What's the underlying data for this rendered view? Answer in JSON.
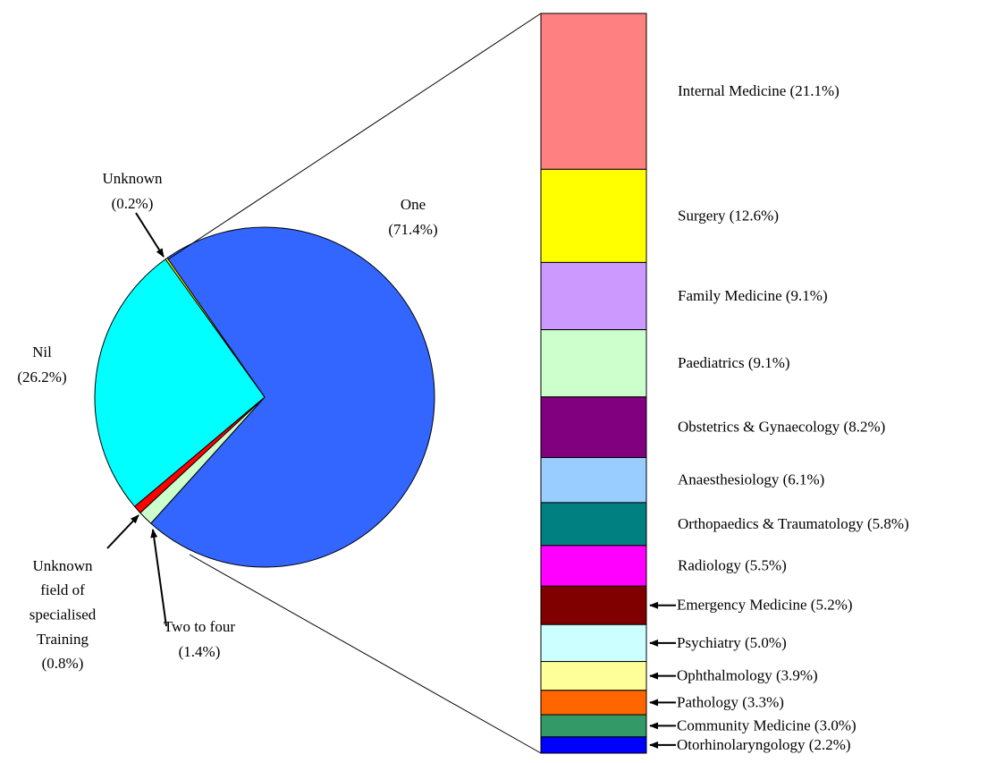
{
  "chart_data": {
    "type": "pie-of-bar",
    "pie": {
      "labels": [
        [
          "One",
          "(71.4%)"
        ],
        [
          "Two to four",
          "(1.4%)"
        ],
        [
          "Unknown",
          "field of",
          "specialised",
          "Training",
          "(0.8%)"
        ],
        [
          "Nil",
          "(26.2%)"
        ],
        [
          "Unknown",
          "(0.2%)"
        ]
      ],
      "values": [
        71.4,
        1.4,
        0.8,
        26.2,
        0.2
      ],
      "colors": [
        "#3366FF",
        "#CCFFCC",
        "#FF0000",
        "#00FFFF",
        "#FFFF00"
      ]
    },
    "bar": {
      "labels": [
        "Internal Medicine (21.1%)",
        "Surgery (12.6%)",
        "Family Medicine (9.1%)",
        "Paediatrics (9.1%)",
        "Obstetrics & Gynaecology (8.2%)",
        "Anaesthesiology (6.1%)",
        "Orthopaedics & Traumatology (5.8%)",
        "Radiology (5.5%)",
        "Emergency Medicine (5.2%)",
        "Psychiatry (5.0%)",
        "Ophthalmology (3.9%)",
        "Pathology (3.3%)",
        "Community Medicine (3.0%)",
        "Otorhinolaryngology (2.2%)"
      ],
      "values": [
        21.1,
        12.6,
        9.1,
        9.1,
        8.2,
        6.1,
        5.8,
        5.5,
        5.2,
        5.0,
        3.9,
        3.3,
        3.0,
        2.2
      ],
      "colors": [
        "#FF8080",
        "#FFFF00",
        "#CC99FF",
        "#CCFFCC",
        "#800080",
        "#99CCFF",
        "#008080",
        "#FF00FF",
        "#800000",
        "#CCFFFF",
        "#FFFF99",
        "#FF6600",
        "#339966",
        "#0000FF"
      ]
    }
  }
}
